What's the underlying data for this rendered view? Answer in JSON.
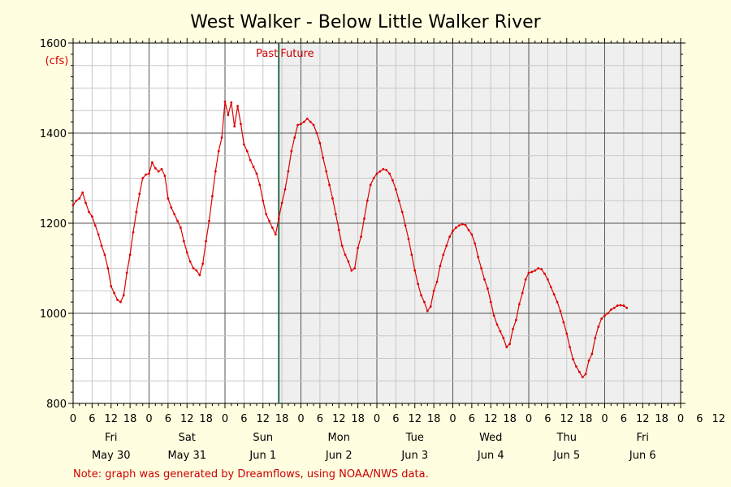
{
  "chart_data": {
    "type": "line",
    "title": "West Walker - Below Little Walker River",
    "unit": "(cfs)",
    "ylim": [
      800,
      1600
    ],
    "y_ticks": [
      800,
      1000,
      1200,
      1400,
      1600
    ],
    "x_range_hours": [
      0,
      192
    ],
    "hour_tick_labels": [
      "0",
      "6",
      "12",
      "18",
      "0",
      "6",
      "12",
      "18",
      "0",
      "6",
      "12",
      "18",
      "0",
      "6",
      "12",
      "18",
      "0",
      "6",
      "12",
      "18",
      "0",
      "6",
      "12",
      "18",
      "0",
      "6",
      "12",
      "18",
      "0",
      "6",
      "12",
      "18",
      "0",
      "6",
      "12",
      "18"
    ],
    "days": [
      {
        "name": "Fri",
        "date": "May 30"
      },
      {
        "name": "Sat",
        "date": "May 31"
      },
      {
        "name": "Sun",
        "date": "Jun 1"
      },
      {
        "name": "Mon",
        "date": "Jun 2"
      },
      {
        "name": "Tue",
        "date": "Jun 3"
      },
      {
        "name": "Wed",
        "date": "Jun 4"
      },
      {
        "name": "Thu",
        "date": "Jun 5"
      },
      {
        "name": "Fri",
        "date": "Jun 6"
      }
    ],
    "past_label": "Past",
    "future_label": "Future",
    "divider_hour": 65,
    "grid": true,
    "colors": {
      "series": "#dd0000",
      "divider": "#2a6b46",
      "future_bg": "#efefef",
      "past_bg": "#ffffff",
      "page_bg": "#fffee0"
    },
    "series": [
      {
        "points": [
          [
            0,
            1240
          ],
          [
            1,
            1250
          ],
          [
            2,
            1255
          ],
          [
            3,
            1268
          ],
          [
            4,
            1245
          ],
          [
            5,
            1225
          ],
          [
            6,
            1215
          ],
          [
            7,
            1195
          ],
          [
            8,
            1175
          ],
          [
            9,
            1150
          ],
          [
            10,
            1130
          ],
          [
            11,
            1100
          ],
          [
            12,
            1060
          ],
          [
            13,
            1045
          ],
          [
            14,
            1030
          ],
          [
            15,
            1025
          ],
          [
            16,
            1040
          ],
          [
            17,
            1090
          ],
          [
            18,
            1130
          ],
          [
            19,
            1180
          ],
          [
            20,
            1225
          ],
          [
            21,
            1265
          ],
          [
            22,
            1300
          ],
          [
            23,
            1308
          ],
          [
            24,
            1310
          ],
          [
            25,
            1335
          ],
          [
            26,
            1322
          ],
          [
            27,
            1315
          ],
          [
            28,
            1320
          ],
          [
            29,
            1305
          ],
          [
            30,
            1255
          ],
          [
            31,
            1235
          ],
          [
            32,
            1220
          ],
          [
            33,
            1205
          ],
          [
            34,
            1190
          ],
          [
            35,
            1160
          ],
          [
            36,
            1135
          ],
          [
            37,
            1115
          ],
          [
            38,
            1100
          ],
          [
            39,
            1095
          ],
          [
            40,
            1085
          ],
          [
            41,
            1110
          ],
          [
            42,
            1160
          ],
          [
            43,
            1205
          ],
          [
            44,
            1260
          ],
          [
            45,
            1315
          ],
          [
            46,
            1360
          ],
          [
            47,
            1390
          ],
          [
            48,
            1470
          ],
          [
            49,
            1440
          ],
          [
            50,
            1468
          ],
          [
            51,
            1415
          ],
          [
            52,
            1460
          ],
          [
            53,
            1420
          ],
          [
            54,
            1375
          ],
          [
            55,
            1360
          ],
          [
            56,
            1340
          ],
          [
            57,
            1325
          ],
          [
            58,
            1310
          ],
          [
            59,
            1285
          ],
          [
            60,
            1250
          ],
          [
            61,
            1220
          ],
          [
            62,
            1205
          ],
          [
            63,
            1190
          ],
          [
            64,
            1175
          ],
          [
            65,
            1210
          ],
          [
            66,
            1245
          ],
          [
            67,
            1275
          ],
          [
            68,
            1315
          ],
          [
            69,
            1360
          ],
          [
            70,
            1390
          ],
          [
            71,
            1418
          ],
          [
            72,
            1420
          ],
          [
            73,
            1425
          ],
          [
            74,
            1432
          ],
          [
            75,
            1425
          ],
          [
            76,
            1418
          ],
          [
            77,
            1400
          ],
          [
            78,
            1378
          ],
          [
            79,
            1345
          ],
          [
            80,
            1315
          ],
          [
            81,
            1285
          ],
          [
            82,
            1255
          ],
          [
            83,
            1220
          ],
          [
            84,
            1185
          ],
          [
            85,
            1150
          ],
          [
            86,
            1130
          ],
          [
            87,
            1115
          ],
          [
            88,
            1095
          ],
          [
            89,
            1100
          ],
          [
            90,
            1145
          ],
          [
            91,
            1170
          ],
          [
            92,
            1210
          ],
          [
            93,
            1250
          ],
          [
            94,
            1285
          ],
          [
            95,
            1300
          ],
          [
            96,
            1310
          ],
          [
            97,
            1315
          ],
          [
            98,
            1320
          ],
          [
            99,
            1318
          ],
          [
            100,
            1310
          ],
          [
            101,
            1295
          ],
          [
            102,
            1275
          ],
          [
            103,
            1250
          ],
          [
            104,
            1225
          ],
          [
            105,
            1195
          ],
          [
            106,
            1165
          ],
          [
            107,
            1130
          ],
          [
            108,
            1095
          ],
          [
            109,
            1065
          ],
          [
            110,
            1040
          ],
          [
            111,
            1025
          ],
          [
            112,
            1005
          ],
          [
            113,
            1015
          ],
          [
            114,
            1050
          ],
          [
            115,
            1070
          ],
          [
            116,
            1105
          ],
          [
            117,
            1130
          ],
          [
            118,
            1150
          ],
          [
            119,
            1170
          ],
          [
            120,
            1183
          ],
          [
            121,
            1190
          ],
          [
            122,
            1195
          ],
          [
            123,
            1198
          ],
          [
            124,
            1196
          ],
          [
            125,
            1185
          ],
          [
            126,
            1175
          ],
          [
            127,
            1155
          ],
          [
            128,
            1125
          ],
          [
            129,
            1100
          ],
          [
            130,
            1075
          ],
          [
            131,
            1055
          ],
          [
            132,
            1025
          ],
          [
            133,
            995
          ],
          [
            134,
            975
          ],
          [
            135,
            960
          ],
          [
            136,
            945
          ],
          [
            137,
            925
          ],
          [
            138,
            932
          ],
          [
            139,
            965
          ],
          [
            140,
            985
          ],
          [
            141,
            1020
          ],
          [
            142,
            1045
          ],
          [
            143,
            1075
          ],
          [
            144,
            1090
          ],
          [
            145,
            1092
          ],
          [
            146,
            1095
          ],
          [
            147,
            1100
          ],
          [
            148,
            1098
          ],
          [
            149,
            1088
          ],
          [
            150,
            1075
          ],
          [
            151,
            1058
          ],
          [
            152,
            1042
          ],
          [
            153,
            1025
          ],
          [
            154,
            1005
          ],
          [
            155,
            980
          ],
          [
            156,
            955
          ],
          [
            157,
            925
          ],
          [
            158,
            898
          ],
          [
            159,
            882
          ],
          [
            160,
            870
          ],
          [
            161,
            858
          ],
          [
            162,
            865
          ],
          [
            163,
            895
          ],
          [
            164,
            910
          ],
          [
            165,
            945
          ],
          [
            166,
            970
          ],
          [
            167,
            988
          ],
          [
            168,
            995
          ],
          [
            169,
            1000
          ],
          [
            170,
            1008
          ],
          [
            171,
            1012
          ],
          [
            172,
            1017
          ],
          [
            173,
            1018
          ],
          [
            174,
            1017
          ],
          [
            175,
            1012
          ]
        ]
      }
    ]
  },
  "footer": {
    "note": "Note: graph was generated by Dreamflows, using NOAA/NWS data."
  }
}
